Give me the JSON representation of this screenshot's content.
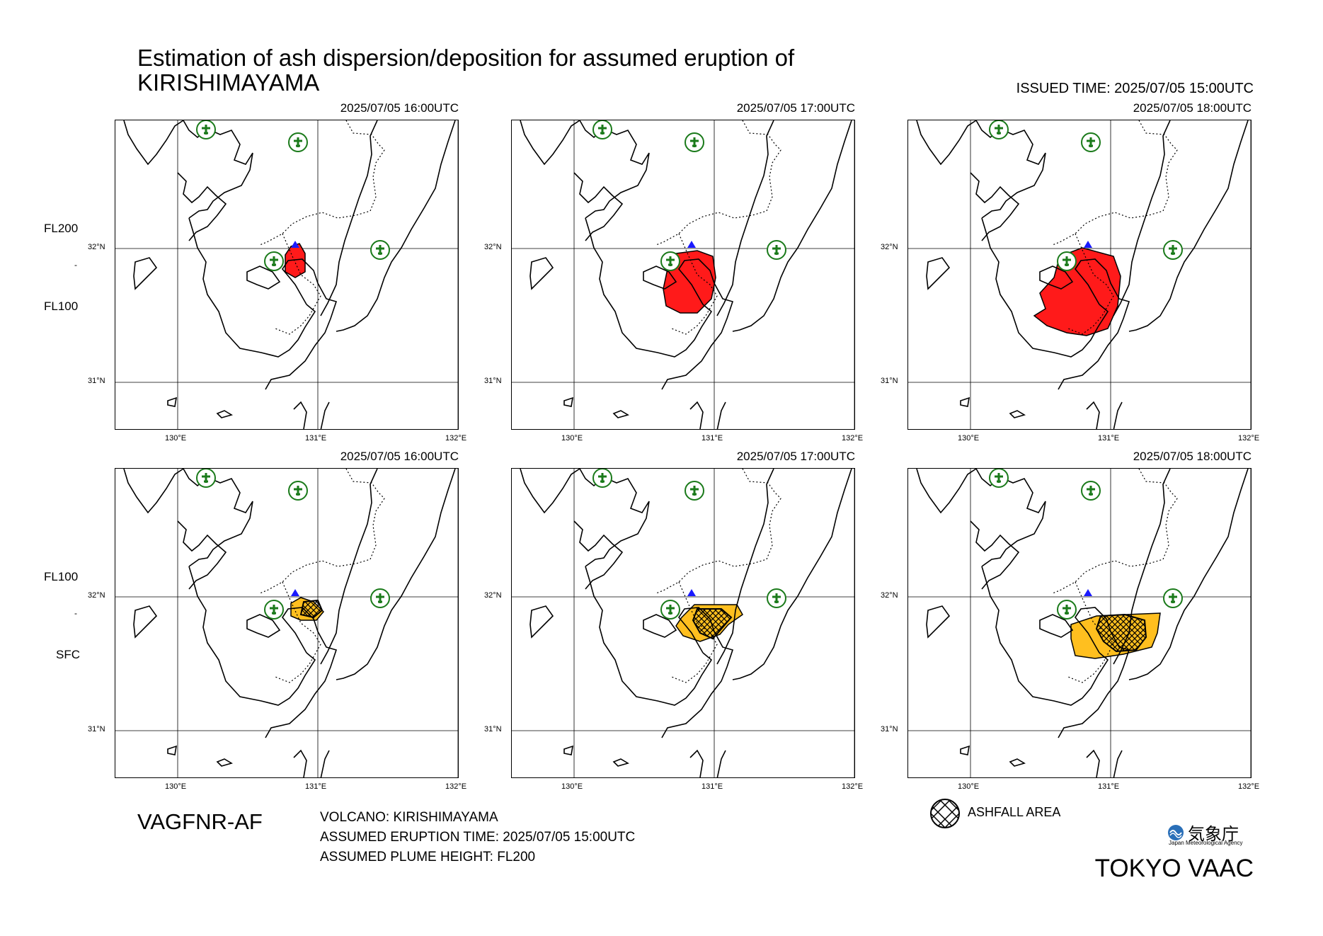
{
  "header": {
    "title_line1": "Estimation of ash dispersion/deposition for assumed eruption of",
    "title_line2": "KIRISHIMAYAMA",
    "issued": "ISSUED TIME: 2025/07/05 15:00UTC"
  },
  "rows": [
    {
      "layer_top": "FL200",
      "layer_sep": "-",
      "layer_bottom": "FL100",
      "fill_color": "#ff1a1a",
      "panels": [
        {
          "time": "2025/07/05 16:00UTC"
        },
        {
          "time": "2025/07/05 17:00UTC"
        },
        {
          "time": "2025/07/05 18:00UTC"
        }
      ]
    },
    {
      "layer_top": "FL100",
      "layer_sep": "-",
      "layer_bottom": "SFC",
      "fill_color": "#ffbf1f",
      "panels": [
        {
          "time": "2025/07/05 16:00UTC"
        },
        {
          "time": "2025/07/05 17:00UTC"
        },
        {
          "time": "2025/07/05 18:00UTC"
        }
      ]
    }
  ],
  "axes": {
    "lat_labels": [
      "32°N",
      "31°N"
    ],
    "lon_labels": [
      "130°E",
      "131°E",
      "132°E"
    ]
  },
  "footer": {
    "product": "VAGFNR-AF",
    "volcano": "VOLCANO: KIRISHIMAYAMA",
    "eruption_time": "ASSUMED ERUPTION TIME: 2025/07/05 15:00UTC",
    "plume_height": "ASSUMED PLUME HEIGHT: FL200",
    "legend_label": "ASHFALL AREA",
    "agency_jp": "気象庁",
    "agency_en": "Japan Meteorological Agency",
    "vaac": "TOKYO VAAC"
  },
  "colors": {
    "volcano_marker": "#1a1aff",
    "airport_marker": "#1a7a1a",
    "ash_cloud_upper": "#ff1a1a",
    "ash_cloud_lower": "#ffbf1f",
    "hatch": "#000000"
  },
  "icons": {
    "volcano": "triangle-icon",
    "airport": "airport-icon",
    "ashfall": "hatched-circle-icon"
  }
}
